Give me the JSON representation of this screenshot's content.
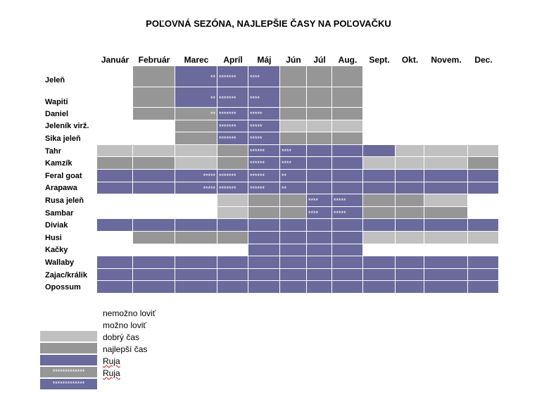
{
  "title": "POĽOVNÁ SEZÓNA, NAJLEPŠIE ČASY NA POĽOVAČKU",
  "colors": {
    "none": "#ffffff",
    "can": "#c0c0c0",
    "good": "#969696",
    "best": "#6a6a9c"
  },
  "chart_data": {
    "type": "table",
    "months": [
      "Január",
      "Február",
      "Marec",
      "Apríl",
      "Máj",
      "Jún",
      "Júl",
      "Aug.",
      "Sept.",
      "Okt.",
      "Novem.",
      "Dec."
    ],
    "status_codes": {
      "0": "nemožno loviť",
      "1": "možno loviť",
      "2": "dobrý čas",
      "3": "najlepší čas"
    },
    "rows": [
      {
        "name": "Jeleň",
        "status": [
          0,
          2,
          3,
          3,
          3,
          2,
          2,
          2,
          0,
          0,
          0,
          0
        ],
        "marks": {
          "2": "**",
          "3": "*******",
          "4": "****"
        }
      },
      {
        "name": "Wapiti",
        "status": [
          0,
          2,
          3,
          3,
          3,
          2,
          2,
          2,
          0,
          0,
          0,
          0
        ],
        "marks": {
          "2": "**",
          "3": "*******",
          "4": "****"
        }
      },
      {
        "name": "Daniel",
        "status": [
          0,
          2,
          2,
          3,
          3,
          2,
          2,
          2,
          0,
          0,
          0,
          0
        ],
        "marks": {
          "2": "**",
          "3": "*******",
          "4": "*****"
        }
      },
      {
        "name": "Jeleník virž.",
        "status": [
          0,
          0,
          2,
          3,
          3,
          1,
          1,
          1,
          0,
          0,
          0,
          0
        ],
        "marks": {
          "3": "*******",
          "4": "*****"
        }
      },
      {
        "name": "Sika jeleň",
        "status": [
          0,
          0,
          2,
          3,
          3,
          2,
          2,
          2,
          0,
          0,
          0,
          0
        ],
        "marks": {
          "3": "*******",
          "4": "*****"
        }
      },
      {
        "name": "Tahr",
        "status": [
          1,
          1,
          1,
          2,
          3,
          3,
          3,
          3,
          3,
          1,
          1,
          1
        ],
        "marks": {
          "4": "******",
          "5": "****"
        }
      },
      {
        "name": "Kamzík",
        "status": [
          2,
          2,
          1,
          2,
          3,
          3,
          3,
          3,
          1,
          1,
          1,
          2
        ],
        "marks": {
          "4": "******",
          "5": "****"
        }
      },
      {
        "name": "Feral goat",
        "status": [
          3,
          3,
          3,
          3,
          3,
          3,
          3,
          3,
          3,
          3,
          3,
          3
        ],
        "marks": {
          "2": "*****",
          "3": "*******",
          "4": "******",
          "5": "**"
        }
      },
      {
        "name": "Arapawa",
        "status": [
          3,
          3,
          3,
          3,
          3,
          3,
          3,
          3,
          3,
          3,
          3,
          3
        ],
        "marks": {
          "2": "*****",
          "3": "*******",
          "4": "******",
          "5": "**"
        }
      },
      {
        "name": "Rusa jeleň",
        "status": [
          0,
          0,
          0,
          1,
          2,
          2,
          3,
          3,
          2,
          2,
          1,
          0
        ],
        "marks": {
          "6": "****",
          "7": "*****"
        }
      },
      {
        "name": "Sambar",
        "status": [
          0,
          0,
          0,
          1,
          2,
          2,
          3,
          3,
          2,
          2,
          2,
          0
        ],
        "marks": {
          "6": "****",
          "7": "*****"
        }
      },
      {
        "name": "Diviak",
        "status": [
          3,
          3,
          3,
          3,
          3,
          3,
          3,
          3,
          3,
          3,
          3,
          3
        ],
        "marks": {}
      },
      {
        "name": "Husi",
        "status": [
          0,
          2,
          2,
          2,
          3,
          3,
          3,
          3,
          1,
          1,
          1,
          1
        ],
        "marks": {}
      },
      {
        "name": "Kačky",
        "status": [
          0,
          0,
          0,
          0,
          3,
          3,
          3,
          3,
          0,
          0,
          0,
          0
        ],
        "marks": {}
      },
      {
        "name": "Wallaby",
        "status": [
          3,
          3,
          3,
          3,
          3,
          3,
          3,
          3,
          3,
          3,
          3,
          3
        ],
        "marks": {}
      },
      {
        "name": "Zajac/králik",
        "status": [
          3,
          3,
          3,
          3,
          3,
          3,
          3,
          3,
          3,
          3,
          3,
          3
        ],
        "marks": {}
      },
      {
        "name": "Opossum",
        "status": [
          3,
          3,
          3,
          3,
          3,
          3,
          3,
          3,
          3,
          3,
          3,
          3
        ],
        "marks": {}
      }
    ]
  },
  "legend": [
    {
      "label": "nemožno loviť",
      "status": "none",
      "marks": ""
    },
    {
      "label": "možno loviť",
      "status": "can",
      "marks": ""
    },
    {
      "label": "dobrý čas",
      "status": "good",
      "marks": ""
    },
    {
      "label": "najlepší čas",
      "status": "best",
      "marks": ""
    },
    {
      "label": "Ruja",
      "status": "good",
      "marks": "*************"
    },
    {
      "label": "Ruja",
      "status": "best",
      "marks": "*************"
    }
  ]
}
